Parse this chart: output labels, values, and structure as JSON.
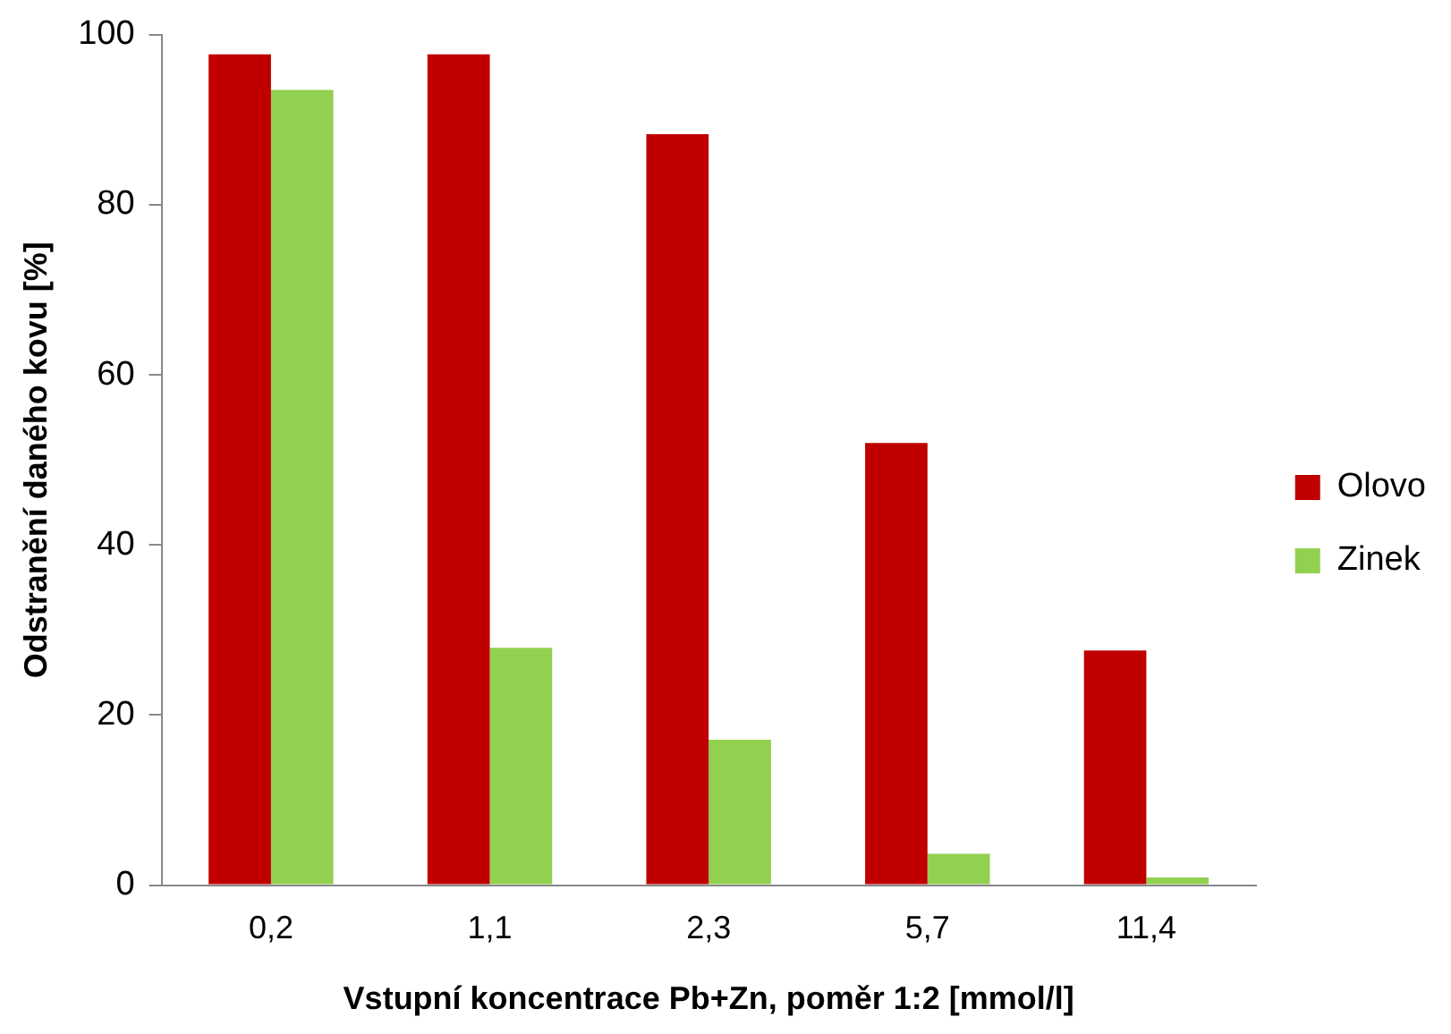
{
  "chart_data": {
    "type": "bar",
    "xlabel": "Vstupní koncentrace Pb+Zn, poměr 1:2 [mmol/l]",
    "ylabel": "Odstranění daného kovu [%]",
    "categories": [
      "0,2",
      "1,1",
      "2,3",
      "5,7",
      "11,4"
    ],
    "series": [
      {
        "name": "Olovo",
        "color": "#c00000",
        "values": [
          97.7,
          97.7,
          88.3,
          52.0,
          27.6
        ]
      },
      {
        "name": "Zinek",
        "color": "#92d050",
        "values": [
          93.5,
          27.9,
          17.1,
          3.7,
          0.9
        ]
      }
    ],
    "ylim": [
      0,
      100
    ],
    "yticks": [
      0,
      20,
      40,
      60,
      80,
      100
    ],
    "grid": false,
    "legend": "right"
  }
}
